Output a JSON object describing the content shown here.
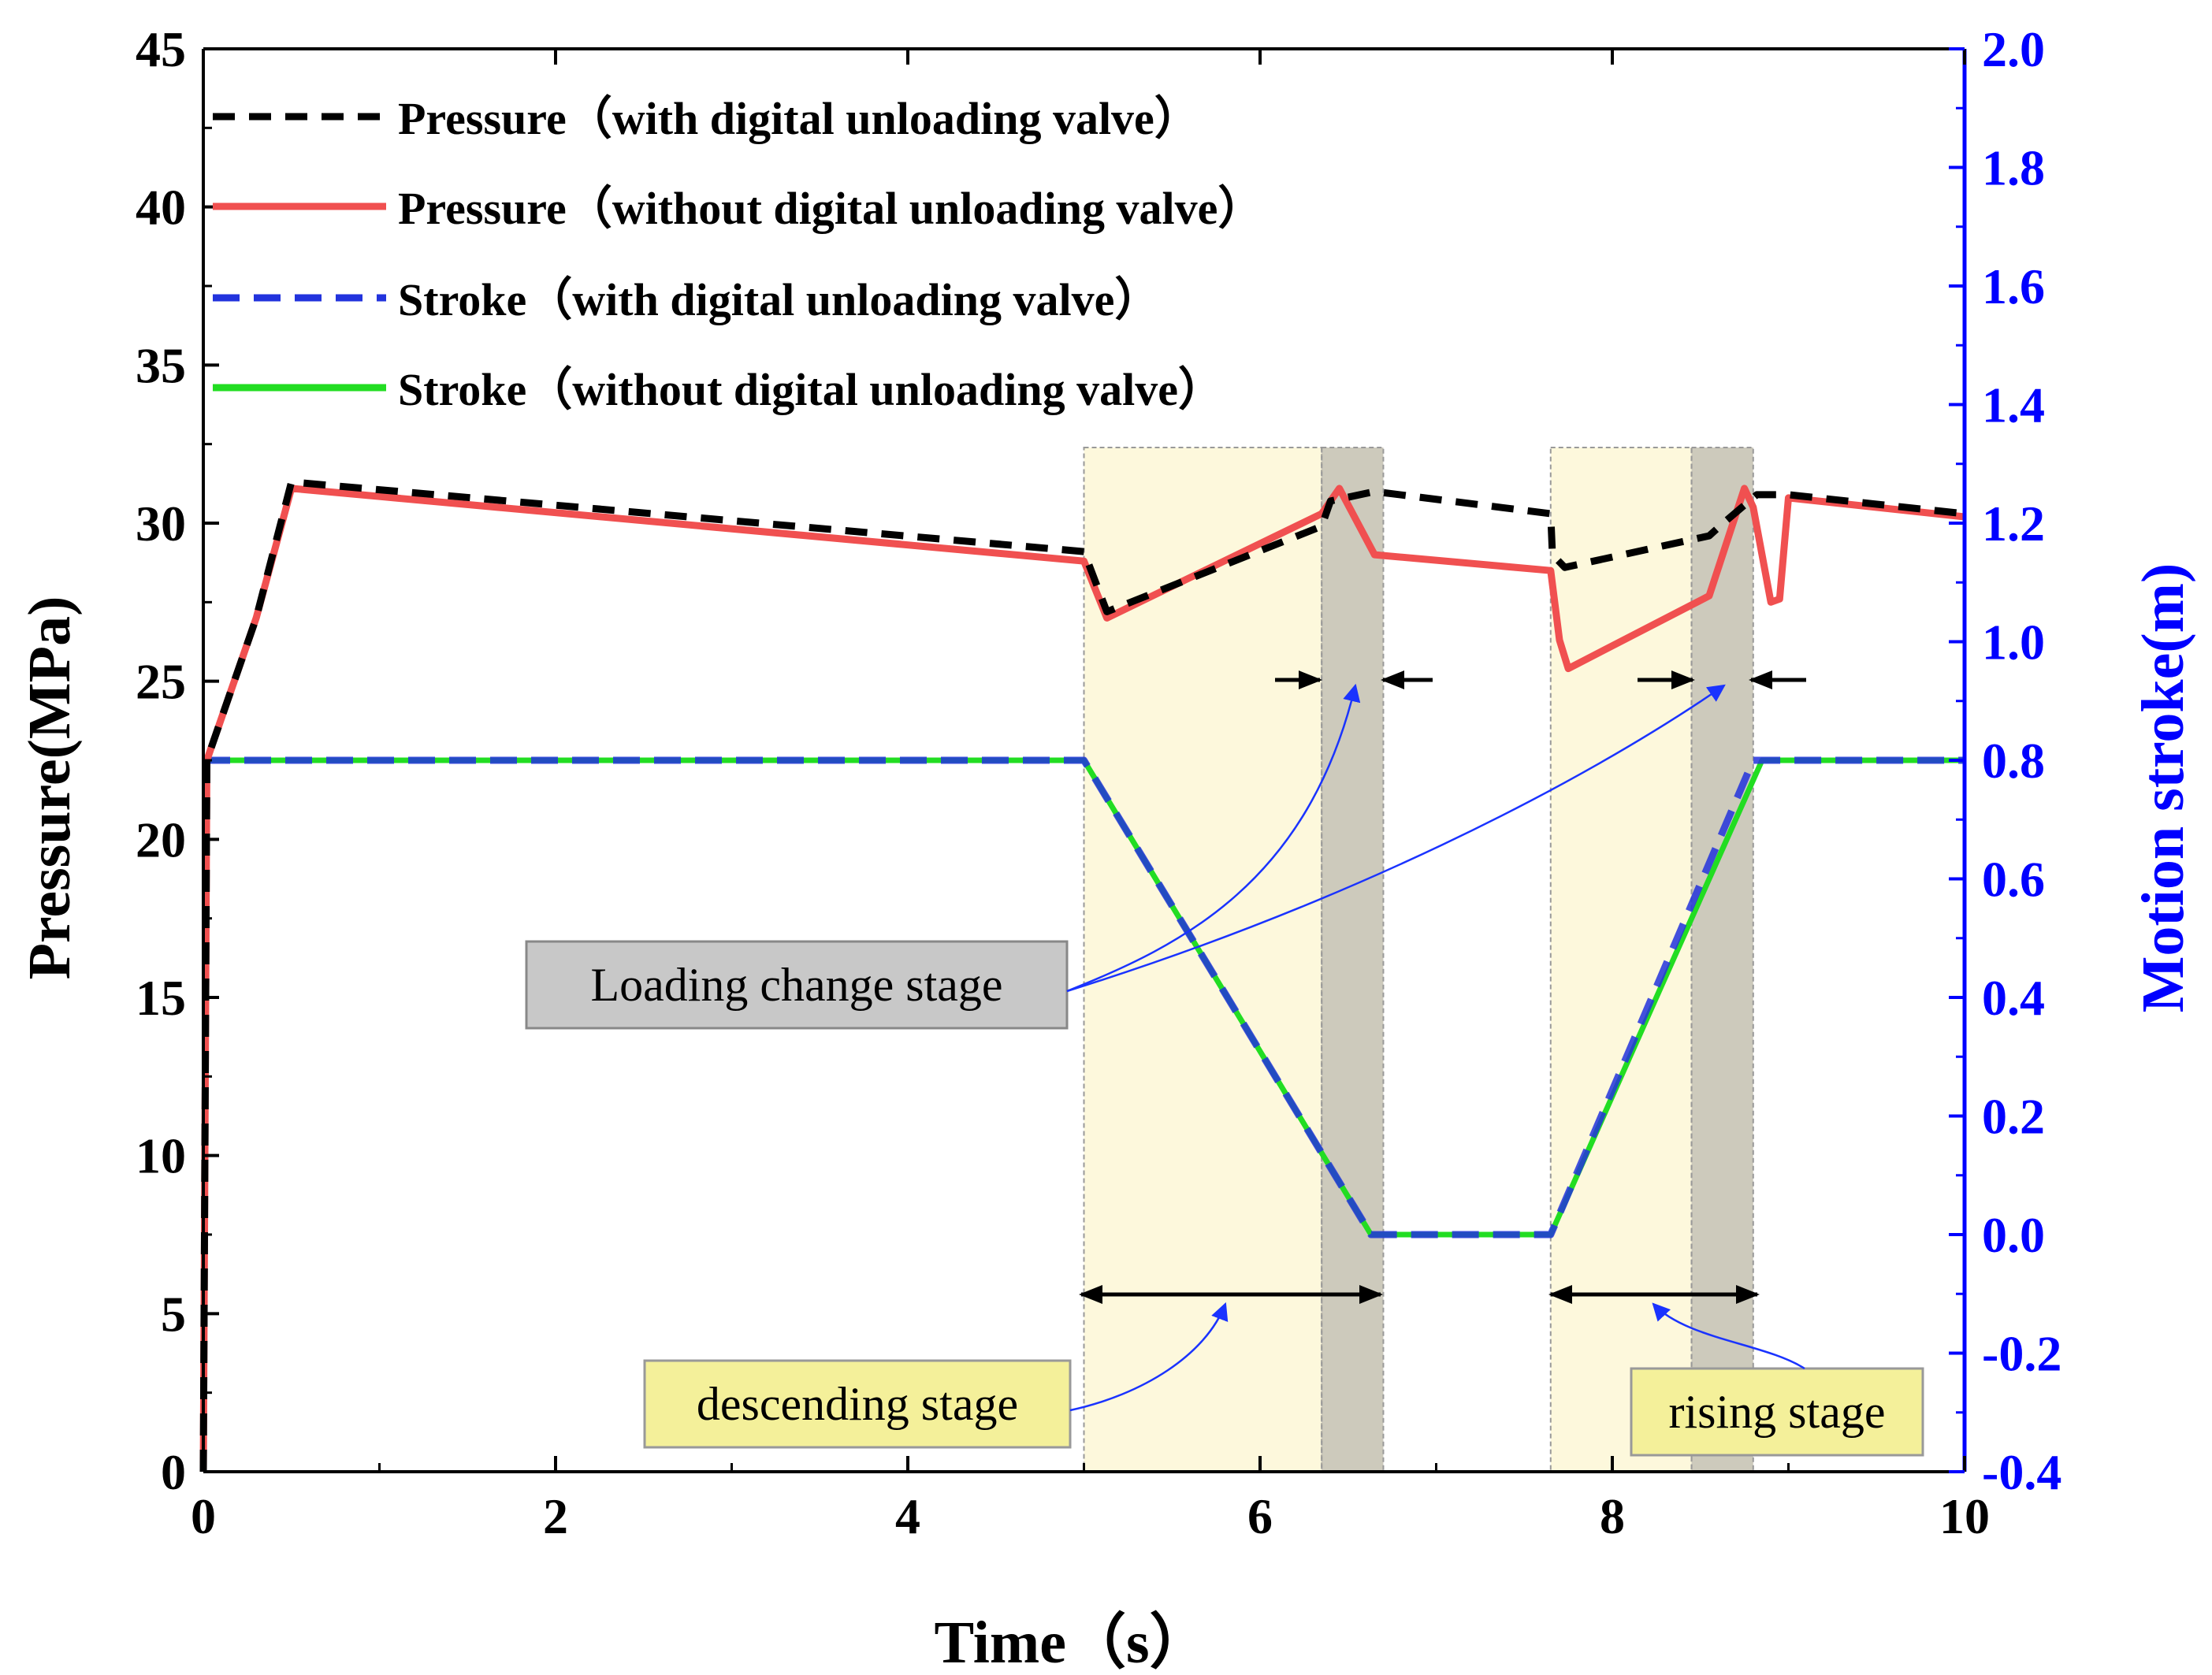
{
  "chart_data": {
    "type": "line",
    "xlabel": "Time（s）",
    "ylabel_left": "Pressure(MPa)",
    "ylabel_right": "Motion stroke(m)",
    "xlim": [
      0,
      10
    ],
    "ylim_left": [
      0,
      45
    ],
    "ylim_right": [
      -0.4,
      2.0
    ],
    "x_ticks": [
      "0",
      "2",
      "4",
      "6",
      "8",
      "10"
    ],
    "y_left_ticks": [
      "0",
      "5",
      "10",
      "15",
      "20",
      "25",
      "30",
      "35",
      "40",
      "45"
    ],
    "y_right_ticks": [
      "-0.4",
      "-0.2",
      "0.0",
      "0.2",
      "0.4",
      "0.6",
      "0.8",
      "1.0",
      "1.2",
      "1.4",
      "1.6",
      "1.8",
      "2.0"
    ],
    "colors": {
      "axis_right": "#0000ff",
      "pressure_with": "#000000",
      "pressure_without": "#f05050",
      "stroke_with": "#2233dd",
      "stroke_without": "#22dd22",
      "stage_fill": "#fdf8dc",
      "loading_fill": "#b8b4a0",
      "label_yellow": "#f4f09a",
      "label_gray": "#c8c8c8"
    },
    "series": [
      {
        "name": "Pressure（with digital unloading valve）",
        "axis": "left",
        "style": "dashed",
        "x": [
          0,
          0.02,
          0.3,
          0.5,
          5.0,
          5.13,
          6.35,
          6.4,
          6.65,
          7.65,
          7.66,
          7.73,
          8.55,
          8.63,
          8.82,
          9.0,
          10.0
        ],
        "y": [
          0,
          22.5,
          27.0,
          31.3,
          29.1,
          27.2,
          29.9,
          30.7,
          31.0,
          30.3,
          29.0,
          28.6,
          29.6,
          30.0,
          30.9,
          30.9,
          30.3
        ]
      },
      {
        "name": "Pressure（without digital unloading valve）",
        "axis": "left",
        "style": "solid",
        "x": [
          0,
          0.02,
          0.3,
          0.5,
          5.0,
          5.13,
          6.35,
          6.45,
          6.65,
          7.65,
          7.7,
          7.75,
          8.55,
          8.75,
          8.8,
          8.9,
          8.95,
          9.0,
          10.0
        ],
        "y": [
          0,
          22.5,
          27.0,
          31.1,
          28.8,
          27.0,
          30.3,
          31.1,
          29.0,
          28.5,
          26.3,
          25.4,
          27.7,
          31.1,
          30.5,
          27.5,
          27.6,
          30.8,
          30.2
        ]
      },
      {
        "name": "Stroke（with digital unloading valve）",
        "axis": "right",
        "style": "dashed",
        "x": [
          0,
          5.0,
          6.63,
          7.65,
          8.8,
          10.0
        ],
        "y": [
          0.8,
          0.8,
          0.0,
          0.0,
          0.8,
          0.8
        ]
      },
      {
        "name": "Stroke（without digital unloading valve）",
        "axis": "right",
        "style": "solid",
        "x": [
          0,
          5.0,
          6.63,
          7.65,
          8.85,
          10.0
        ],
        "y": [
          0.8,
          0.8,
          0.0,
          0.0,
          0.8,
          0.8
        ]
      }
    ],
    "stages": [
      {
        "x_start": 5.0,
        "x_end": 6.35,
        "kind": "descending"
      },
      {
        "x_start": 6.35,
        "x_end": 6.7,
        "kind": "loading"
      },
      {
        "x_start": 7.65,
        "x_end": 8.45,
        "kind": "rising"
      },
      {
        "x_start": 8.45,
        "x_end": 8.8,
        "kind": "loading"
      }
    ],
    "annotations": {
      "loading_change": "Loading change stage",
      "descending": "descending stage",
      "rising": "rising stage"
    }
  }
}
